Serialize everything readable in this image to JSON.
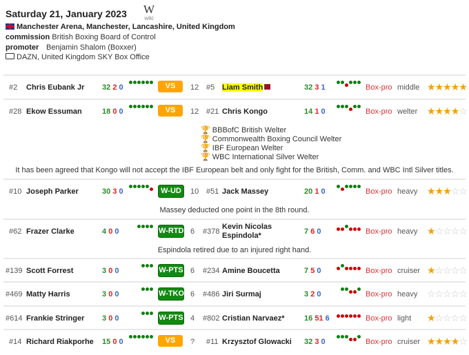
{
  "event": {
    "date": "Saturday 21, January 2023",
    "wiki_label": "wiki",
    "wiki_logo": "W",
    "venue": "Manchester Arena, Manchester, Lancashire, United Kingdom",
    "commission_label": "commission",
    "commission": "British Boxing Board of Control",
    "promoter_label": "promoter",
    "promoter": "Benjamin Shalom (Boxxer)",
    "tv": "DAZN, United Kingdom SKY Box Office"
  },
  "colors": {
    "win": "#2a8a2a",
    "loss": "#dd2222",
    "draw": "#3366cc",
    "vs_badge": "#ffa500",
    "win_badge": "#128a12",
    "star": "#f5a000"
  },
  "bouts": [
    {
      "rank1": "#2",
      "name1": "Chris Eubank Jr",
      "w1": "32",
      "l1": "2",
      "d1": "0",
      "form1": "WWWWWW",
      "result": "VS",
      "rounds": "12",
      "rank2": "#5",
      "name2": "Liam Smith",
      "w2": "32",
      "l2": "3",
      "d2": "1",
      "form2": "WWLWWW",
      "type": "Box-pro",
      "weight": "middle",
      "stars": 5
    },
    {
      "rank1": "#28",
      "name1": "Ekow Essuman",
      "w1": "18",
      "l1": "0",
      "d1": "0",
      "form1": "WWWWWW",
      "result": "VS",
      "rounds": "12",
      "rank2": "#21",
      "name2": "Chris Kongo",
      "w2": "14",
      "l2": "1",
      "d2": "0",
      "form2": "WWWLWW",
      "type": "Box-pro",
      "weight": "welter",
      "stars": 4
    },
    {
      "rank1": "#10",
      "name1": "Joseph Parker",
      "w1": "30",
      "l1": "3",
      "d1": "0",
      "form1": "WWWWWL",
      "result": "W-UD",
      "rounds": "10",
      "rank2": "#51",
      "name2": "Jack Massey",
      "w2": "20",
      "l2": "1",
      "d2": "0",
      "form2": "WLWWWW",
      "type": "Box-pro",
      "weight": "heavy",
      "stars": 3
    },
    {
      "rank1": "#62",
      "name1": "Frazer Clarke",
      "w1": "4",
      "l1": "0",
      "d1": "0",
      "form1": "WWWW",
      "result": "W-RTD",
      "rounds": "6",
      "rank2": "#378",
      "name2": "Kevin Nicolas",
      "name2b": "Espindola*",
      "w2": "7",
      "l2": "6",
      "d2": "0",
      "form2": "LLWLLL",
      "type": "Box-pro",
      "weight": "heavy",
      "stars": 1
    },
    {
      "rank1": "#139",
      "name1": "Scott Forrest",
      "w1": "3",
      "l1": "0",
      "d1": "0",
      "form1": "WWW",
      "result": "W-PTS",
      "rounds": "6",
      "rank2": "#234",
      "name2": "Amine Boucetta",
      "w2": "7",
      "l2": "5",
      "d2": "0",
      "form2": "LWLLLL",
      "type": "Box-pro",
      "weight": "cruiser",
      "stars": 1
    },
    {
      "rank1": "#469",
      "name1": "Matty Harris",
      "w1": "3",
      "l1": "0",
      "d1": "0",
      "form1": "WWW",
      "result": "W-TKO",
      "rounds": "6",
      "rank2": "#486",
      "name2": "Jiri Surmaj",
      "w2": "3",
      "l2": "2",
      "d2": "0",
      "form2": "WWLLW",
      "type": "Box-pro",
      "weight": "heavy",
      "stars": 0
    },
    {
      "rank1": "#614",
      "name1": "Frankie Stringer",
      "w1": "3",
      "l1": "0",
      "d1": "0",
      "form1": "WWW",
      "result": "W-PTS",
      "rounds": "4",
      "rank2": "#802",
      "name2": "Cristian Narvaez*",
      "w2": "16",
      "l2": "51",
      "d2": "6",
      "form2": "LLLLLL",
      "type": "Box-pro",
      "weight": "light",
      "stars": 1
    },
    {
      "rank1": "#14",
      "name1": "Richard Riakporhe",
      "w1": "15",
      "l1": "0",
      "d1": "0",
      "form1": "WWWWWW",
      "result": "VS",
      "rounds": "?",
      "rank2": "#11",
      "name2": "Krzysztof Glowacki",
      "w2": "32",
      "l2": "3",
      "d2": "0",
      "form2": "WWWLLW",
      "type": "Box-pro",
      "weight": "cruiser",
      "stars": 4
    }
  ],
  "kongo_titles": [
    "BBBofC British Welter",
    "Commonwealth Boxing Council Welter",
    "IBF European Welter",
    "WBC International Silver Welter"
  ],
  "notes": {
    "kongo": "It has been agreed that Kongo will not accept the IBF European belt and only fight for the British, Comm. and WBC Intl Silver titles.",
    "massey": "Massey deducted one point in the 8th round.",
    "espindola": "Espindola retired due to an injured right hand."
  }
}
